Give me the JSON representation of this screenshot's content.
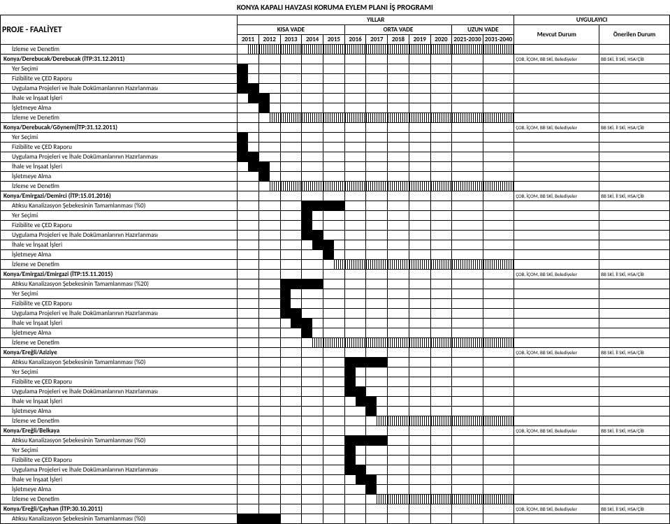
{
  "title": "KONYA KAPALI HAVZASI KORUMA EYLEM PLANI İŞ PROGRAMI",
  "header": {
    "proje_faaliyet": "PROJE - FAALİYET",
    "yillar": "YILLAR",
    "uygulayici": "UYGULAYICI",
    "kisa_vade": "KISA VADE",
    "orta_vade": "ORTA VADE",
    "uzun_vade": "UZUN VADE",
    "mevcut_durum": "Mevcut Durum",
    "onerilen_durum": "Önerilen Durum",
    "years_kisa": [
      "2011",
      "2012",
      "2013",
      "2014",
      "2015"
    ],
    "years_orta": [
      "2016",
      "2017",
      "2018",
      "2019",
      "2020"
    ],
    "years_uzun": [
      "2021-2030",
      "2031-2040"
    ]
  },
  "mevcut_text": "ÇOB, İÇOM, BB SKİ, Belediyeler",
  "oner_text": "BB SKİ, İl SKİ, HSA/ÇİB",
  "activities_common": [
    {
      "label": "Yer Seçimi"
    },
    {
      "label": "Fizibilite ve ÇED Raporu"
    },
    {
      "label": "Uygulama Projeleri ve İhale Dokümanlarının Hazırlanması"
    },
    {
      "label": "İhale ve İnşaat İşleri"
    },
    {
      "label": "İşletmeye Alma"
    },
    {
      "label": "İzleme ve Denetim"
    }
  ],
  "projects": [
    {
      "title": "Konya/Derebucak/Derebucak (İTP:31.12.2011)",
      "lead_izleme": true,
      "has_atiksu": false,
      "shift": 0
    },
    {
      "title": "Konya/Derebucak/Göynem(İTP:31.12.2011)",
      "has_atiksu": false,
      "shift": 0
    },
    {
      "title": "Konya/Emirgazi/Demirci (İTP:15.01.2016)",
      "has_atiksu": true,
      "atiksu_label": "Atıksu Kanalizasyon Şebekesinin Tamamlanması (%0)",
      "shift": 3
    },
    {
      "title": "Konya/Emirgazi/Emirgazi (İTP:15.11.2015)",
      "has_atiksu": true,
      "atiksu_label": "Atıksu Kanalizasyon Şebekesinin Tamamlanması (%20)",
      "shift": 2
    },
    {
      "title": "Konya/Ereğli/Aziziye",
      "has_atiksu": true,
      "atiksu_label": "Atıksu Kanalizasyon Şebekesinin Tamamlanması (%0)",
      "shift": 5
    },
    {
      "title": "Konya/Ereğli/Belkaya",
      "has_atiksu": true,
      "atiksu_label": "Atıksu Kanalizasyon Şebekesinin Tamamlanması (%0)",
      "shift": 5
    },
    {
      "title": "Konya/Ereğli/Çayhan (İTP:30.10.2011)",
      "has_atiksu": true,
      "atiksu_label": "Atıksu Kanalizasyon Şebekesinin Tamamlanması (%0)",
      "is_last": true
    }
  ],
  "gantt_template": {
    "comment": "bar spans are in half-year units across 12 year-columns (10 single yrs = 20 halves, 2 decade cols = 4 halves → 24 halves total). start/len below; for shifted projects add 2*shift halves to start. izleme runs from (isletmeye end) to col end as hatched.",
    "atiksu": {
      "start": 0,
      "len": 4,
      "hatched": false
    },
    "yer": {
      "start": 0,
      "len": 1,
      "hatched": false
    },
    "fiz": {
      "start": 0,
      "len": 1,
      "hatched": false
    },
    "uyg": {
      "start": 0,
      "len": 2,
      "hatched": false
    },
    "ihale": {
      "start": 1,
      "len": 2,
      "hatched": false
    },
    "islet": {
      "start": 2,
      "len": 1,
      "hatched": false
    },
    "izleme": {
      "start": 3,
      "len": 99,
      "hatched": true
    }
  },
  "colors": {
    "bar": "#000000",
    "grid": "#000000",
    "bg": "#ffffff"
  }
}
